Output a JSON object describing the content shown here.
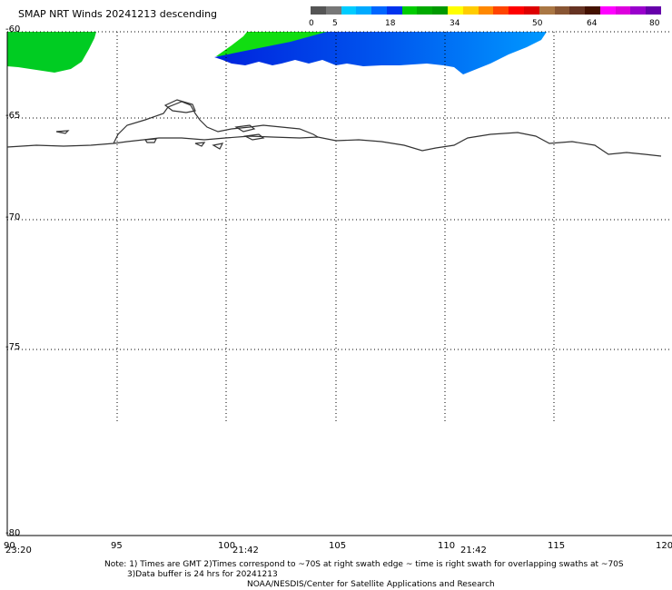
{
  "title": "SMAP NRT Winds  20241213 descending",
  "colorbar": {
    "labels": [
      "0",
      "5",
      "18",
      "34",
      "50",
      "64",
      "80"
    ],
    "colors": [
      "#555555",
      "#777777",
      "#00ccff",
      "#00aaff",
      "#0066ff",
      "#0033ee",
      "#00cc00",
      "#00aa00",
      "#009900",
      "#ffff00",
      "#ffcc00",
      "#ff8800",
      "#ff4400",
      "#ff0000",
      "#dd0000",
      "#aa7744",
      "#885533",
      "#663322",
      "#441100",
      "#ff00ff",
      "#dd00dd",
      "#9900cc",
      "#6600aa"
    ]
  },
  "lat_labels": [
    "-60",
    "-65",
    "-70",
    "-75",
    "-80"
  ],
  "lon_labels": [
    "90",
    "95",
    "100",
    "105",
    "110",
    "115",
    "120"
  ],
  "times": [
    "23:20",
    "21:42",
    "21:42"
  ],
  "notes": {
    "line1": "Note: 1) Times are GMT 2)Times correspond to ~70S at right swath edge ~ time is right swath for overlapping swaths at ~70S",
    "line2": "3)Data buffer is 24 hrs for 20241213",
    "line3": "NOAA/NESDIS/Center for Satellite Applications and Research"
  }
}
